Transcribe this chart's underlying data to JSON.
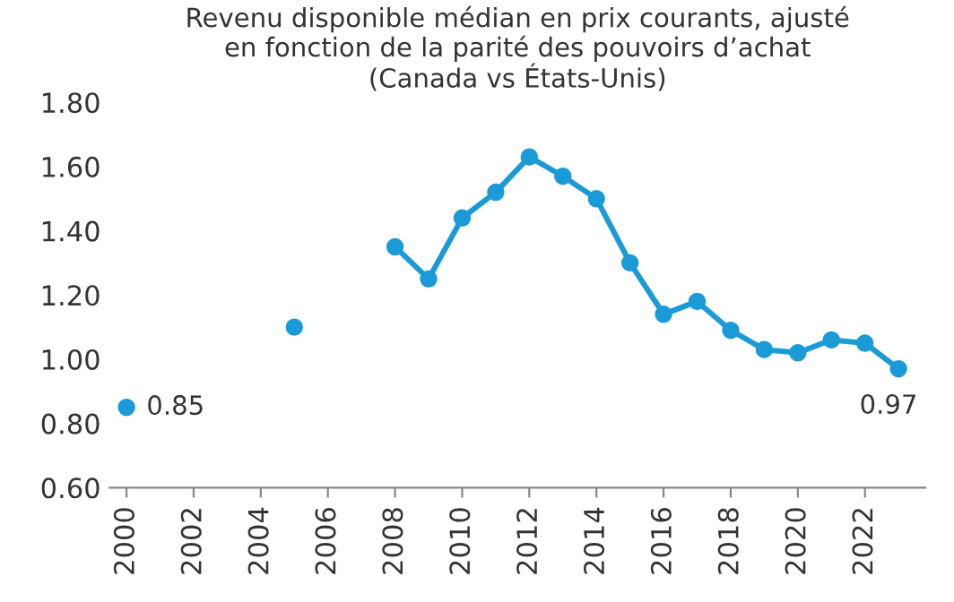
{
  "chart_data": {
    "type": "line",
    "title": "Revenu disponible médian en prix courants, ajusté\nen fonction de la parité des pouvoirs d’achat\n(Canada vs États-Unis)",
    "x": [
      2000,
      2001,
      2002,
      2003,
      2004,
      2005,
      2006,
      2007,
      2008,
      2009,
      2010,
      2011,
      2012,
      2013,
      2014,
      2015,
      2016,
      2017,
      2018,
      2019,
      2020,
      2021,
      2022,
      2023
    ],
    "series": [
      {
        "color": "#1a9bd7",
        "values": [
          0.85,
          null,
          null,
          null,
          null,
          1.1,
          null,
          null,
          1.35,
          1.25,
          1.44,
          1.52,
          1.63,
          1.57,
          1.5,
          1.3,
          1.14,
          1.18,
          1.09,
          1.03,
          1.02,
          1.06,
          1.05,
          0.97
        ]
      }
    ],
    "xlim": [
      1999.5,
      2023.8
    ],
    "xticks": [
      2000,
      2002,
      2004,
      2006,
      2008,
      2010,
      2012,
      2014,
      2016,
      2018,
      2020,
      2022
    ],
    "ylim": [
      0.6,
      1.8
    ],
    "yticks": [
      {
        "value": 0.6,
        "label": "0.60"
      },
      {
        "value": 0.8,
        "label": "0.80"
      },
      {
        "value": 1.0,
        "label": "1.00"
      },
      {
        "value": 1.2,
        "label": "1.20"
      },
      {
        "value": 1.4,
        "label": "1.40"
      },
      {
        "value": 1.6,
        "label": "1.60"
      },
      {
        "value": 1.8,
        "label": "1.80"
      }
    ],
    "marker": "circle",
    "line_style": "solid",
    "grid": false,
    "legend": false,
    "annotations": [
      {
        "text": "0.85",
        "x": 2000,
        "y": 0.85
      },
      {
        "text": "0.97",
        "x": 2023,
        "y": 0.97
      }
    ]
  }
}
